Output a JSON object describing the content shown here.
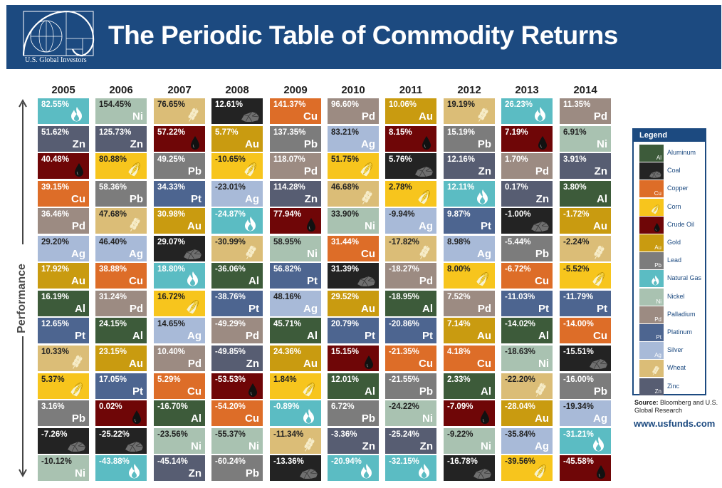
{
  "header": {
    "title": "The Periodic Table of Commodity Returns",
    "logo_text": "U.S. Global Investors"
  },
  "axis_label": "Performance",
  "colors": {
    "Al": "#3d5b3a",
    "Coal": "#232323",
    "Cu": "#dd6d28",
    "Corn": "#f7c51d",
    "Oil": "#6f0607",
    "Au": "#c99b10",
    "Pb": "#7c7c7c",
    "Gas": "#5bbcc3",
    "Ni": "#a9c2b1",
    "Pd": "#9c8b82",
    "Pt": "#4d6590",
    "Ag": "#a8bad8",
    "Wheat": "#dbbd77",
    "Zn": "#575d72",
    "header": "#1c4a80"
  },
  "legend": {
    "title": "Legend",
    "items": [
      {
        "key": "Al",
        "symbol": "Al",
        "label": "Aluminum"
      },
      {
        "key": "Coal",
        "symbol": "",
        "label": "Coal"
      },
      {
        "key": "Cu",
        "symbol": "Cu",
        "label": "Copper"
      },
      {
        "key": "Corn",
        "symbol": "",
        "label": "Corn"
      },
      {
        "key": "Oil",
        "symbol": "",
        "label": "Crude Oil"
      },
      {
        "key": "Au",
        "symbol": "Au",
        "label": "Gold"
      },
      {
        "key": "Pb",
        "symbol": "Pb",
        "label": "Lead"
      },
      {
        "key": "Gas",
        "symbol": "",
        "label": "Natural Gas"
      },
      {
        "key": "Ni",
        "symbol": "Ni",
        "label": "Nickel"
      },
      {
        "key": "Pd",
        "symbol": "Pd",
        "label": "Palladium"
      },
      {
        "key": "Pt",
        "symbol": "Pt",
        "label": "Platinum"
      },
      {
        "key": "Ag",
        "symbol": "Ag",
        "label": "Silver"
      },
      {
        "key": "Wheat",
        "symbol": "",
        "label": "Wheat"
      },
      {
        "key": "Zn",
        "symbol": "Zn",
        "label": "Zinc"
      }
    ]
  },
  "source": {
    "label": "Source:",
    "text": "Bloomberg and U.S. Global Research",
    "url": "www.usfunds.com"
  },
  "chart_data": {
    "type": "table",
    "title": "The Periodic Table of Commodity Returns",
    "ylabel": "Performance",
    "years": [
      {
        "year": "2005",
        "cells": [
          {
            "c": "Gas",
            "v": "82.55%"
          },
          {
            "c": "Zn",
            "v": "51.62%"
          },
          {
            "c": "Oil",
            "v": "40.48%"
          },
          {
            "c": "Cu",
            "v": "39.15%"
          },
          {
            "c": "Pd",
            "v": "36.46%"
          },
          {
            "c": "Ag",
            "v": "29.20%"
          },
          {
            "c": "Au",
            "v": "17.92%"
          },
          {
            "c": "Al",
            "v": "16.19%"
          },
          {
            "c": "Pt",
            "v": "12.65%"
          },
          {
            "c": "Wheat",
            "v": "10.33%"
          },
          {
            "c": "Corn",
            "v": "5.37%"
          },
          {
            "c": "Pb",
            "v": "3.16%"
          },
          {
            "c": "Coal",
            "v": "-7.26%"
          },
          {
            "c": "Ni",
            "v": "-10.12%"
          }
        ]
      },
      {
        "year": "2006",
        "cells": [
          {
            "c": "Ni",
            "v": "154.45%"
          },
          {
            "c": "Zn",
            "v": "125.73%"
          },
          {
            "c": "Corn",
            "v": "80.88%"
          },
          {
            "c": "Pb",
            "v": "58.36%"
          },
          {
            "c": "Wheat",
            "v": "47.68%"
          },
          {
            "c": "Ag",
            "v": "46.40%"
          },
          {
            "c": "Cu",
            "v": "38.88%"
          },
          {
            "c": "Pd",
            "v": "31.24%"
          },
          {
            "c": "Al",
            "v": "24.15%"
          },
          {
            "c": "Au",
            "v": "23.15%"
          },
          {
            "c": "Pt",
            "v": "17.05%"
          },
          {
            "c": "Oil",
            "v": "0.02%"
          },
          {
            "c": "Coal",
            "v": "-25.22%"
          },
          {
            "c": "Gas",
            "v": "-43.88%"
          }
        ]
      },
      {
        "year": "2007",
        "cells": [
          {
            "c": "Wheat",
            "v": "76.65%"
          },
          {
            "c": "Oil",
            "v": "57.22%"
          },
          {
            "c": "Pb",
            "v": "49.25%"
          },
          {
            "c": "Pt",
            "v": "34.33%"
          },
          {
            "c": "Au",
            "v": "30.98%"
          },
          {
            "c": "Coal",
            "v": "29.07%"
          },
          {
            "c": "Gas",
            "v": "18.80%"
          },
          {
            "c": "Corn",
            "v": "16.72%"
          },
          {
            "c": "Ag",
            "v": "14.65%"
          },
          {
            "c": "Pd",
            "v": "10.40%"
          },
          {
            "c": "Cu",
            "v": "5.29%"
          },
          {
            "c": "Al",
            "v": "-16.70%"
          },
          {
            "c": "Ni",
            "v": "-23.56%"
          },
          {
            "c": "Zn",
            "v": "-45.14%"
          }
        ]
      },
      {
        "year": "2008",
        "cells": [
          {
            "c": "Coal",
            "v": "12.61%"
          },
          {
            "c": "Au",
            "v": "5.77%"
          },
          {
            "c": "Corn",
            "v": "-10.65%"
          },
          {
            "c": "Ag",
            "v": "-23.01%"
          },
          {
            "c": "Gas",
            "v": "-24.87%"
          },
          {
            "c": "Wheat",
            "v": "-30.99%"
          },
          {
            "c": "Al",
            "v": "-36.06%"
          },
          {
            "c": "Pt",
            "v": "-38.76%"
          },
          {
            "c": "Pd",
            "v": "-49.29%"
          },
          {
            "c": "Zn",
            "v": "-49.85%"
          },
          {
            "c": "Oil",
            "v": "-53.53%"
          },
          {
            "c": "Cu",
            "v": "-54.20%"
          },
          {
            "c": "Ni",
            "v": "-55.37%"
          },
          {
            "c": "Pb",
            "v": "-60.24%"
          }
        ]
      },
      {
        "year": "2009",
        "cells": [
          {
            "c": "Cu",
            "v": "141.37%"
          },
          {
            "c": "Pb",
            "v": "137.35%"
          },
          {
            "c": "Pd",
            "v": "118.07%"
          },
          {
            "c": "Zn",
            "v": "114.28%"
          },
          {
            "c": "Oil",
            "v": "77.94%"
          },
          {
            "c": "Ni",
            "v": "58.95%"
          },
          {
            "c": "Pt",
            "v": "56.82%"
          },
          {
            "c": "Ag",
            "v": "48.16%"
          },
          {
            "c": "Al",
            "v": "45.71%"
          },
          {
            "c": "Au",
            "v": "24.36%"
          },
          {
            "c": "Corn",
            "v": "1.84%"
          },
          {
            "c": "Gas",
            "v": "-0.89%"
          },
          {
            "c": "Wheat",
            "v": "-11.34%"
          },
          {
            "c": "Coal",
            "v": "-13.36%"
          }
        ]
      },
      {
        "year": "2010",
        "cells": [
          {
            "c": "Pd",
            "v": "96.60%"
          },
          {
            "c": "Ag",
            "v": "83.21%"
          },
          {
            "c": "Corn",
            "v": "51.75%"
          },
          {
            "c": "Wheat",
            "v": "46.68%"
          },
          {
            "c": "Ni",
            "v": "33.90%"
          },
          {
            "c": "Cu",
            "v": "31.44%"
          },
          {
            "c": "Coal",
            "v": "31.39%"
          },
          {
            "c": "Au",
            "v": "29.52%"
          },
          {
            "c": "Pt",
            "v": "20.79%"
          },
          {
            "c": "Oil",
            "v": "15.15%"
          },
          {
            "c": "Al",
            "v": "12.01%"
          },
          {
            "c": "Pb",
            "v": "6.72%"
          },
          {
            "c": "Zn",
            "v": "-3.36%"
          },
          {
            "c": "Gas",
            "v": "-20.94%"
          }
        ]
      },
      {
        "year": "2011",
        "cells": [
          {
            "c": "Au",
            "v": "10.06%"
          },
          {
            "c": "Oil",
            "v": "8.15%"
          },
          {
            "c": "Coal",
            "v": "5.76%"
          },
          {
            "c": "Corn",
            "v": "2.78%"
          },
          {
            "c": "Ag",
            "v": "-9.94%"
          },
          {
            "c": "Wheat",
            "v": "-17.82%"
          },
          {
            "c": "Pd",
            "v": "-18.27%"
          },
          {
            "c": "Al",
            "v": "-18.95%"
          },
          {
            "c": "Pt",
            "v": "-20.86%"
          },
          {
            "c": "Cu",
            "v": "-21.35%"
          },
          {
            "c": "Pb",
            "v": "-21.55%"
          },
          {
            "c": "Ni",
            "v": "-24.22%"
          },
          {
            "c": "Zn",
            "v": "-25.24%"
          },
          {
            "c": "Gas",
            "v": "-32.15%"
          }
        ]
      },
      {
        "year": "2012",
        "cells": [
          {
            "c": "Wheat",
            "v": "19.19%"
          },
          {
            "c": "Pb",
            "v": "15.19%"
          },
          {
            "c": "Zn",
            "v": "12.16%"
          },
          {
            "c": "Gas",
            "v": "12.11%"
          },
          {
            "c": "Pt",
            "v": "9.87%"
          },
          {
            "c": "Ag",
            "v": "8.98%"
          },
          {
            "c": "Corn",
            "v": "8.00%"
          },
          {
            "c": "Pd",
            "v": "7.52%"
          },
          {
            "c": "Au",
            "v": "7.14%"
          },
          {
            "c": "Cu",
            "v": "4.18%"
          },
          {
            "c": "Al",
            "v": "2.33%"
          },
          {
            "c": "Oil",
            "v": "-7.09%"
          },
          {
            "c": "Ni",
            "v": "-9.22%"
          },
          {
            "c": "Coal",
            "v": "-16.78%"
          }
        ]
      },
      {
        "year": "2013",
        "cells": [
          {
            "c": "Gas",
            "v": "26.23%"
          },
          {
            "c": "Oil",
            "v": "7.19%"
          },
          {
            "c": "Pd",
            "v": "1.70%"
          },
          {
            "c": "Zn",
            "v": "0.17%"
          },
          {
            "c": "Coal",
            "v": "-1.00%"
          },
          {
            "c": "Pb",
            "v": "-5.44%"
          },
          {
            "c": "Cu",
            "v": "-6.72%"
          },
          {
            "c": "Pt",
            "v": "-11.03%"
          },
          {
            "c": "Al",
            "v": "-14.02%"
          },
          {
            "c": "Ni",
            "v": "-18.63%"
          },
          {
            "c": "Wheat",
            "v": "-22.20%"
          },
          {
            "c": "Au",
            "v": "-28.04%"
          },
          {
            "c": "Ag",
            "v": "-35.84%"
          },
          {
            "c": "Corn",
            "v": "-39.56%"
          }
        ]
      },
      {
        "year": "2014",
        "cells": [
          {
            "c": "Pd",
            "v": "11.35%"
          },
          {
            "c": "Ni",
            "v": "6.91%"
          },
          {
            "c": "Zn",
            "v": "3.91%"
          },
          {
            "c": "Al",
            "v": "3.80%"
          },
          {
            "c": "Au",
            "v": "-1.72%"
          },
          {
            "c": "Wheat",
            "v": "-2.24%"
          },
          {
            "c": "Corn",
            "v": "-5.52%"
          },
          {
            "c": "Pt",
            "v": "-11.79%"
          },
          {
            "c": "Cu",
            "v": "-14.00%"
          },
          {
            "c": "Coal",
            "v": "-15.51%"
          },
          {
            "c": "Pb",
            "v": "-16.00%"
          },
          {
            "c": "Ag",
            "v": "-19.34%"
          },
          {
            "c": "Gas",
            "v": "-31.21%"
          },
          {
            "c": "Oil",
            "v": "-45.58%"
          }
        ]
      }
    ]
  }
}
